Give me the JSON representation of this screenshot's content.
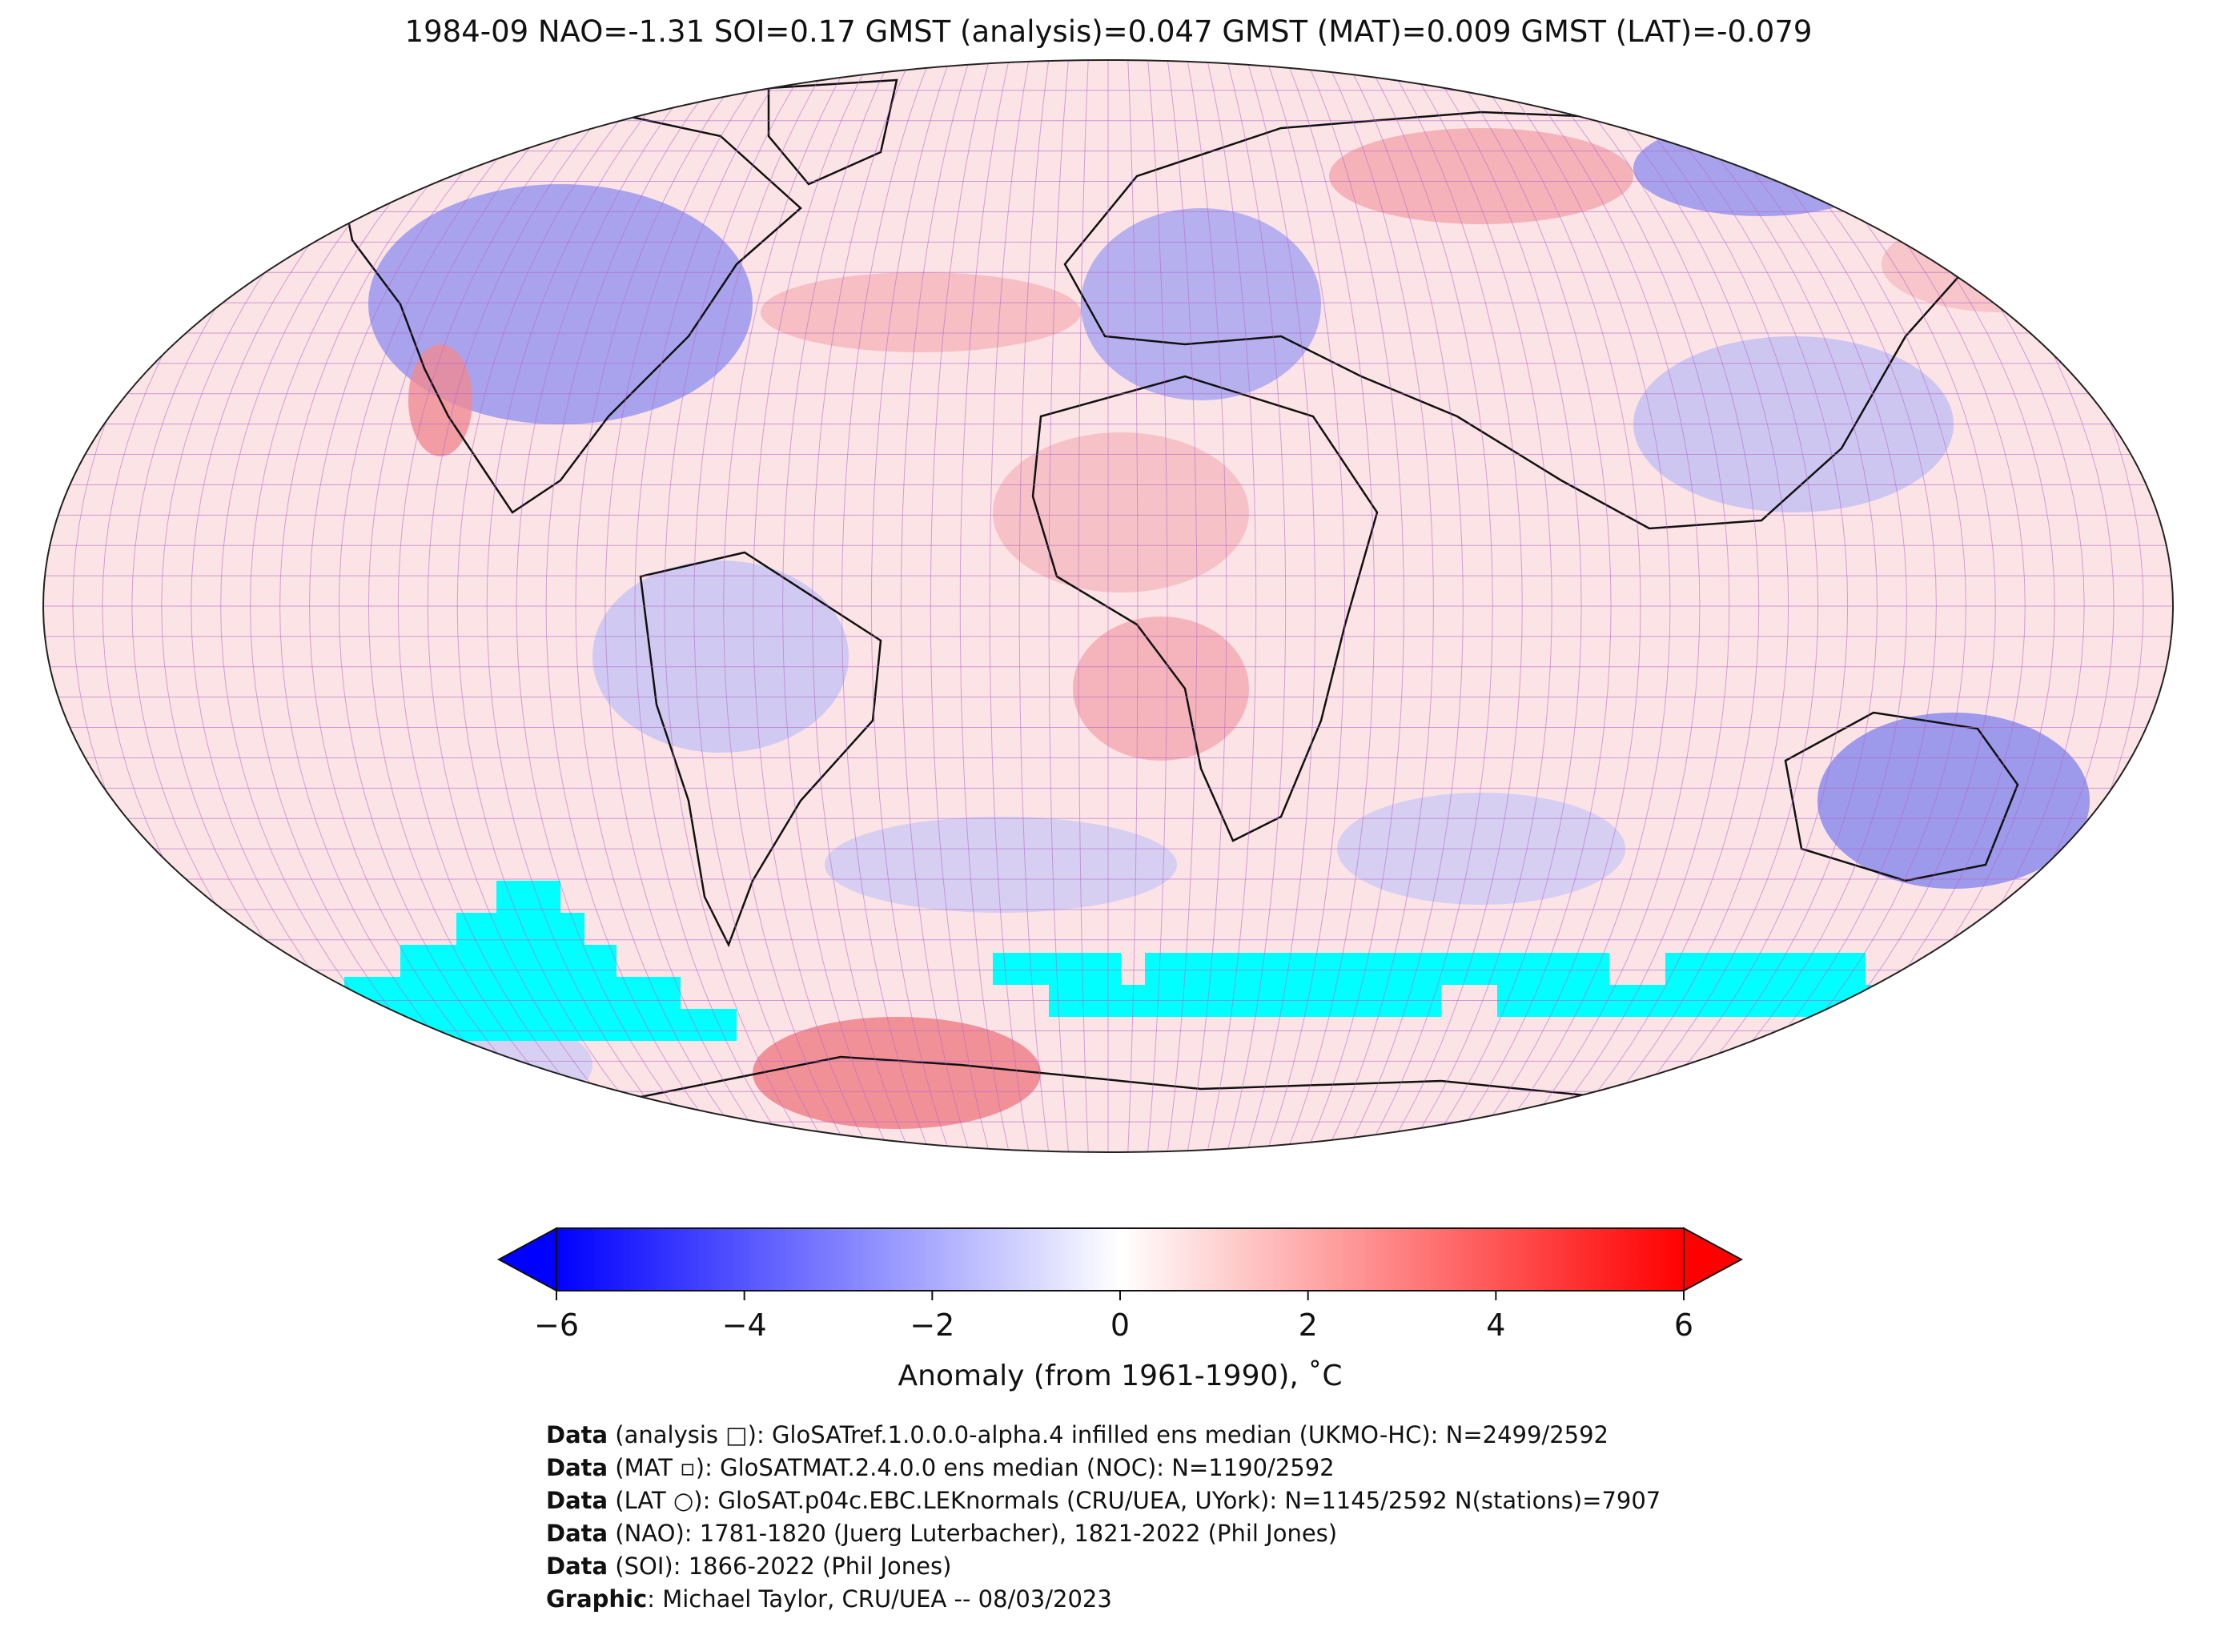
{
  "title": "1984-09 NAO=-1.31 SOI=0.17 GMST (analysis)=0.047 GMST (MAT)=0.009 GMST (LAT)=-0.079",
  "colorbar": {
    "ticks": [
      "−6",
      "−4",
      "−2",
      "0",
      "2",
      "4",
      "6"
    ],
    "label": "Anomaly (from 1961-1990), ˚C",
    "range": [
      -6,
      6
    ],
    "colors": {
      "min": "#0000ff",
      "mid": "#ffffff",
      "max": "#ff0000"
    }
  },
  "map": {
    "projection": "Robinson",
    "missing_color": "#00ffff",
    "grid_color": "#b565c9"
  },
  "credits": [
    {
      "key": "Data",
      "text": " (analysis □): GloSATref.1.0.0.0-alpha.4 infilled ens median (UKMO-HC): N=2499/2592"
    },
    {
      "key": "Data",
      "text": " (MAT ▫): GloSATMAT.2.4.0.0 ens median (NOC): N=1190/2592"
    },
    {
      "key": "Data",
      "text": " (LAT ○): GloSAT.p04c.EBC.LEKnormals (CRU/UEA, UYork): N=1145/2592 N(stations)=7907"
    },
    {
      "key": "Data",
      "text": " (NAO): 1781-1820 (Juerg Luterbacher), 1821-2022 (Phil Jones)"
    },
    {
      "key": "Data",
      "text": " (SOI): 1866-2022 (Phil Jones)"
    },
    {
      "key": "Graphic",
      "text": ": Michael Taylor, CRU/UEA -- 08/03/2023"
    }
  ]
}
